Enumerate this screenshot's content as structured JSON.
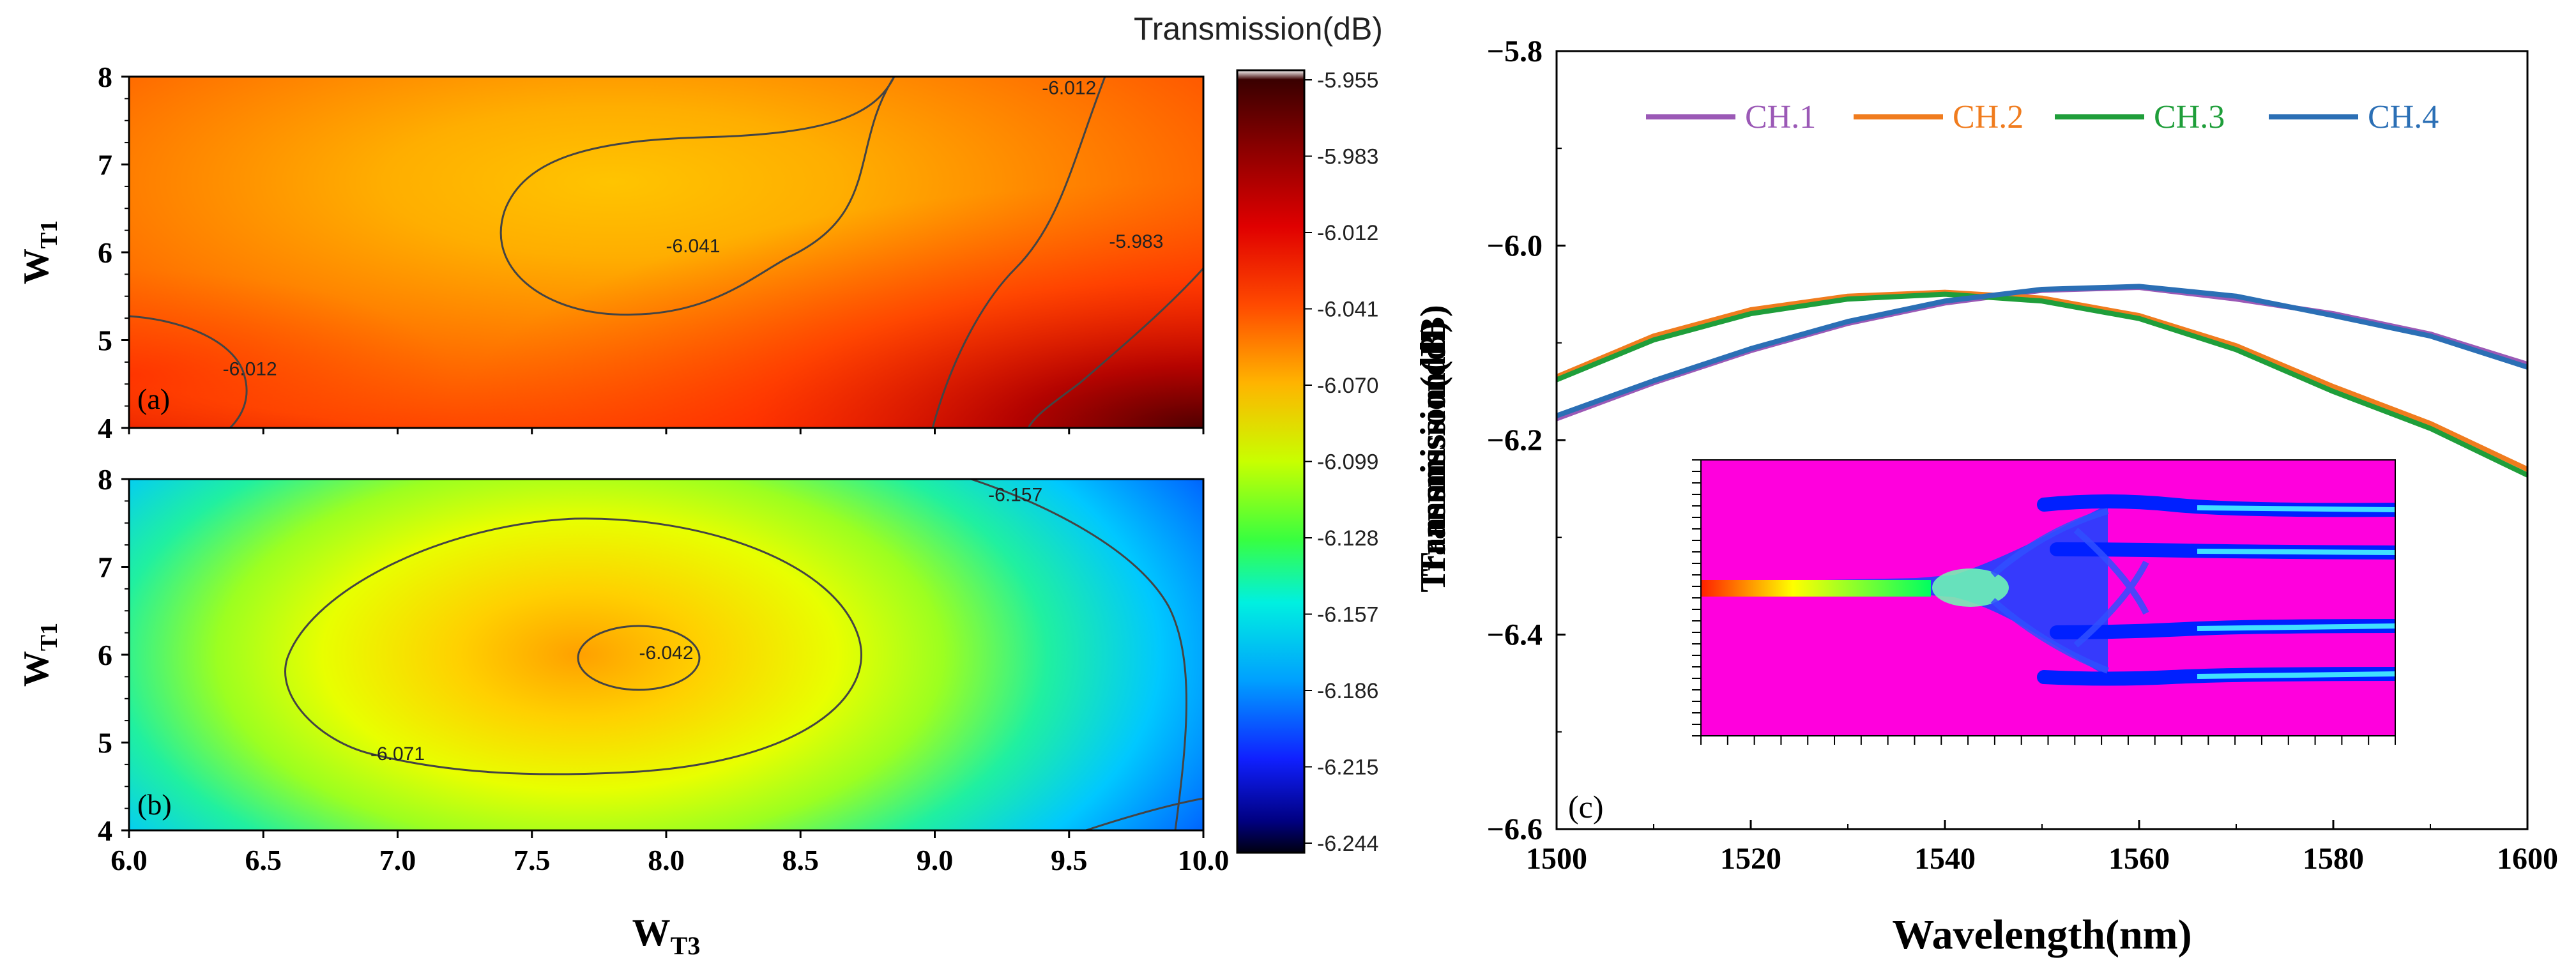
{
  "chart_data": [
    {
      "type": "heatmap",
      "panel_label": "(a)",
      "xlabel_main": "W",
      "xlabel_sub": "T3",
      "ylabel_main": "W",
      "ylabel_sub": "T1",
      "xlim": [
        6.0,
        10.0
      ],
      "ylim": [
        4,
        8
      ],
      "x_ticks": [
        "6.0",
        "6.5",
        "7.0",
        "7.5",
        "8.0",
        "8.5",
        "9.0",
        "9.5",
        "10.0"
      ],
      "y_ticks": [
        "4",
        "5",
        "6",
        "7",
        "8"
      ],
      "contour_labels": [
        {
          "text": "-6.012",
          "x": 9.5,
          "y": 7.8
        },
        {
          "text": "-6.041",
          "x": 8.1,
          "y": 6.0
        },
        {
          "text": "-5.983",
          "x": 9.75,
          "y": 6.05
        },
        {
          "text": "-6.012",
          "x": 6.45,
          "y": 4.6
        }
      ],
      "peak": {
        "x": 8.0,
        "y": 6.6,
        "value": -6.05
      }
    },
    {
      "type": "heatmap",
      "panel_label": "(b)",
      "xlabel_main": "W",
      "xlabel_sub": "T3",
      "ylabel_main": "W",
      "ylabel_sub": "T1",
      "xlim": [
        6.0,
        10.0
      ],
      "ylim": [
        4,
        8
      ],
      "x_ticks": [
        "6.0",
        "6.5",
        "7.0",
        "7.5",
        "8.0",
        "8.5",
        "9.0",
        "9.5",
        "10.0"
      ],
      "y_ticks": [
        "4",
        "5",
        "6",
        "7",
        "8"
      ],
      "contour_labels": [
        {
          "text": "-6.157",
          "x": 9.3,
          "y": 7.75
        },
        {
          "text": "-6.042",
          "x": 8.0,
          "y": 5.95
        },
        {
          "text": "-6.071",
          "x": 7.0,
          "y": 4.8
        }
      ],
      "peak": {
        "x": 7.75,
        "y": 6.0,
        "value": -6.042
      }
    },
    {
      "type": "colorbar",
      "title": "Transmission(dB)",
      "side_label": "Transmission(dB)",
      "ticks": [
        "-5.955",
        "-5.983",
        "-6.012",
        "-6.041",
        "-6.070",
        "-6.099",
        "-6.128",
        "-6.157",
        "-6.186",
        "-6.215",
        "-6.244"
      ],
      "range": [
        -6.244,
        -5.955
      ]
    },
    {
      "type": "line",
      "panel_label": "(c)",
      "xlabel": "Wavelength(nm)",
      "ylabel": "Transmission(dB)",
      "xlim": [
        1500,
        1600
      ],
      "ylim": [
        -6.6,
        -5.8
      ],
      "x_ticks": [
        "1500",
        "1520",
        "1540",
        "1560",
        "1580",
        "1600"
      ],
      "y_ticks": [
        "-5.8",
        "-6.0",
        "-6.2",
        "-6.4",
        "-6.6"
      ],
      "series": [
        {
          "name": "CH.1",
          "color": "#9b59b6",
          "x": [
            1500,
            1510,
            1520,
            1530,
            1540,
            1550,
            1560,
            1570,
            1580,
            1590,
            1600
          ],
          "values": [
            -6.178,
            -6.141,
            -6.108,
            -6.08,
            -6.059,
            -6.046,
            -6.043,
            -6.055,
            -6.07,
            -6.091,
            -6.122
          ]
        },
        {
          "name": "CH.2",
          "color": "#f07c1e",
          "x": [
            1500,
            1510,
            1520,
            1530,
            1540,
            1550,
            1560,
            1570,
            1580,
            1590,
            1600
          ],
          "values": [
            -6.135,
            -6.093,
            -6.066,
            -6.052,
            -6.048,
            -6.054,
            -6.072,
            -6.103,
            -6.145,
            -6.183,
            -6.23
          ]
        },
        {
          "name": "CH.3",
          "color": "#1f9e3a",
          "x": [
            1500,
            1510,
            1520,
            1530,
            1540,
            1550,
            1560,
            1570,
            1580,
            1590,
            1600
          ],
          "values": [
            -6.138,
            -6.097,
            -6.07,
            -6.055,
            -6.05,
            -6.057,
            -6.075,
            -6.107,
            -6.15,
            -6.188,
            -6.236
          ]
        },
        {
          "name": "CH.4",
          "color": "#2b6fb5",
          "x": [
            1500,
            1510,
            1520,
            1530,
            1540,
            1550,
            1560,
            1570,
            1580,
            1590,
            1600
          ],
          "values": [
            -6.175,
            -6.139,
            -6.106,
            -6.078,
            -6.057,
            -6.045,
            -6.042,
            -6.052,
            -6.072,
            -6.093,
            -6.125
          ]
        }
      ],
      "legend_position": "top",
      "inset": "beam-propagation field plot"
    }
  ]
}
